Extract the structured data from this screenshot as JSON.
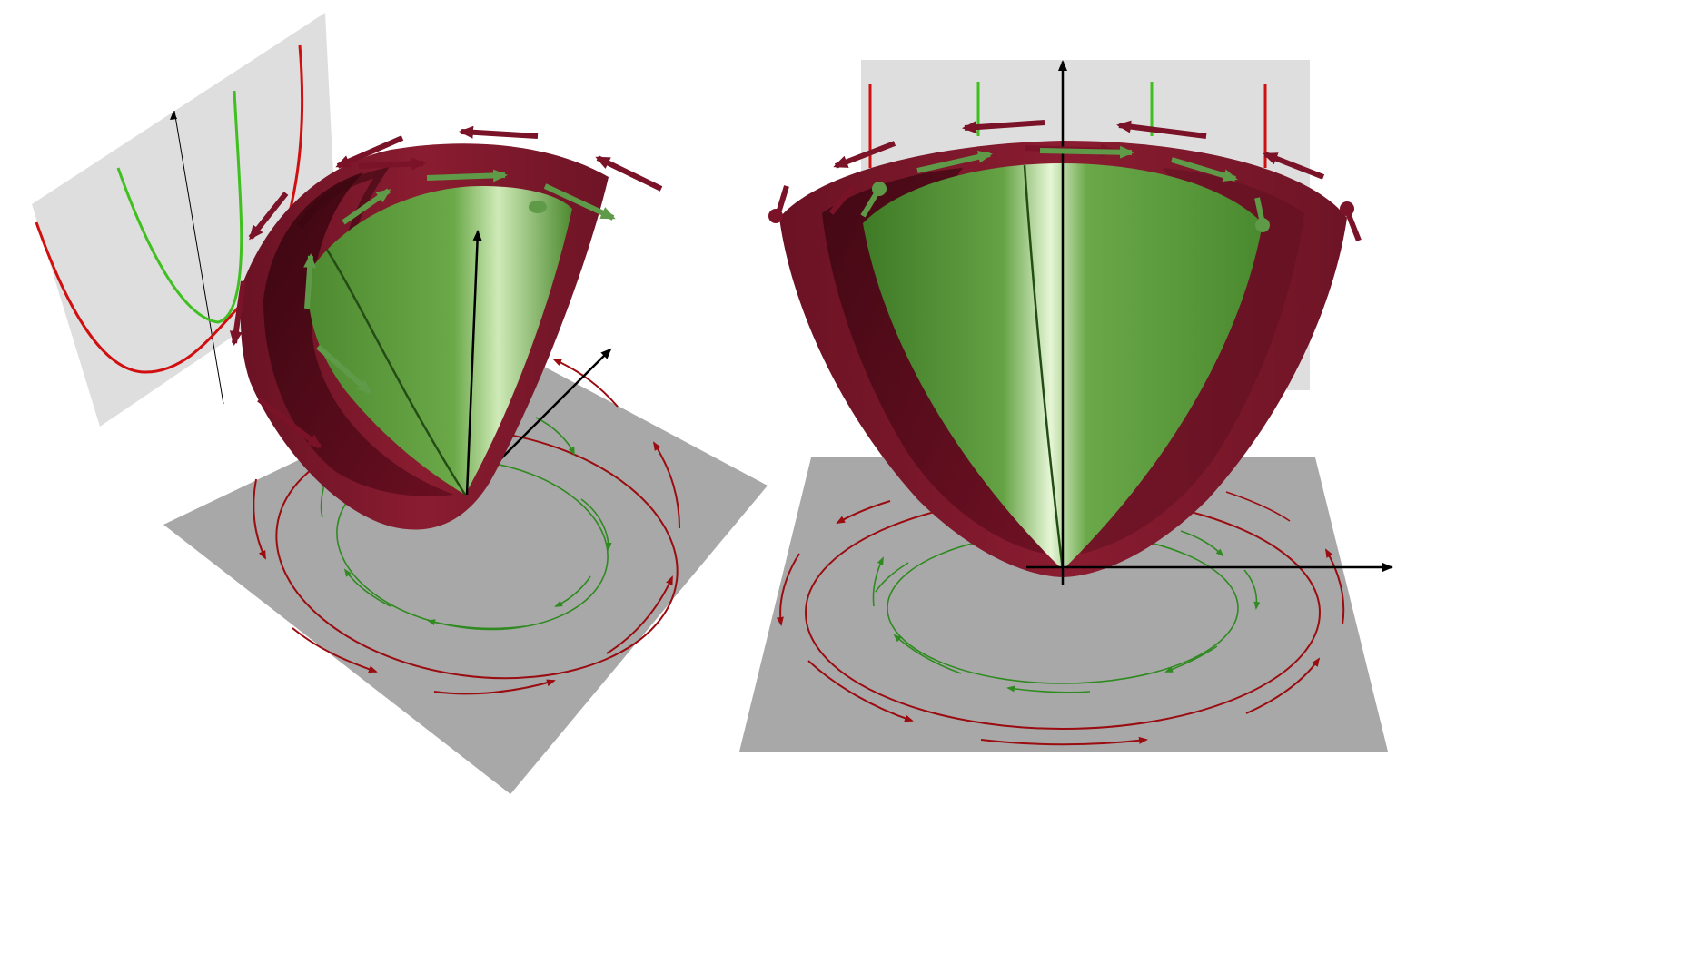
{
  "figure": {
    "panels": [
      {
        "view": "oblique"
      },
      {
        "view": "front"
      }
    ],
    "colors": {
      "outer_surface": "#7a1a2c",
      "outer_surface_dark": "#4a0a16",
      "inner_surface": "#5e9a3a",
      "inner_surface_light": "#d8f0c0",
      "plane": "#a8a8a8",
      "backdrop": "#dedede",
      "outer_curve": "#d01010",
      "inner_curve": "#40c020",
      "outer_arrows": "#9a0c10",
      "inner_arrows": "#2f8a20",
      "axes": "#000000"
    },
    "icons": [
      "outer-paraboloid-icon",
      "inner-paraboloid-icon",
      "rotation-arrow-icon",
      "axis-arrow-icon"
    ]
  }
}
